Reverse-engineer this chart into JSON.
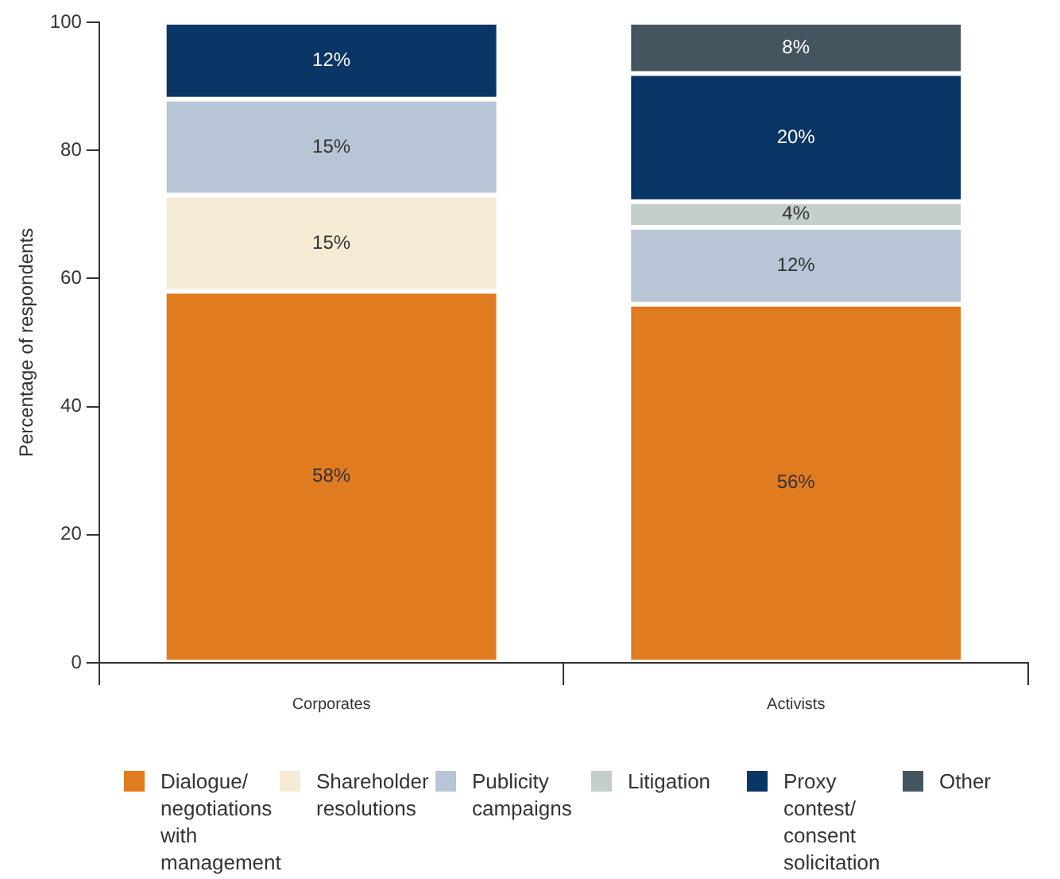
{
  "chart_data": {
    "type": "bar",
    "stacked": true,
    "ylabel": "Percentage of respondents",
    "categories": [
      "Corporates",
      "Activists"
    ],
    "ylim": [
      0,
      100
    ],
    "yticks": [
      0,
      20,
      40,
      60,
      80,
      100
    ],
    "legend": "bottom",
    "series": [
      {
        "name": "Dialogue/ negotiations with management",
        "color": "#e07b20",
        "values": [
          58,
          56
        ],
        "value_labels": [
          "58%",
          "56%"
        ]
      },
      {
        "name": "Shareholder resolutions",
        "color": "#f5ebd5",
        "values": [
          15,
          null
        ],
        "value_labels": [
          "15%",
          null
        ]
      },
      {
        "name": "Publicity campaigns",
        "color": "#b8c5d6",
        "values": [
          15,
          12
        ],
        "value_labels": [
          "15%",
          "12%"
        ]
      },
      {
        "name": "Litigation",
        "color": "#c3cfc8",
        "values": [
          null,
          4
        ],
        "value_labels": [
          null,
          "4%"
        ]
      },
      {
        "name": "Proxy contest/ consent solicitation",
        "color": "#0a3567",
        "values": [
          12,
          20
        ],
        "value_labels": [
          "12%",
          "20%"
        ]
      },
      {
        "name": "Other",
        "color": "#455560",
        "values": [
          null,
          8
        ],
        "value_labels": [
          null,
          "8%"
        ]
      }
    ]
  }
}
